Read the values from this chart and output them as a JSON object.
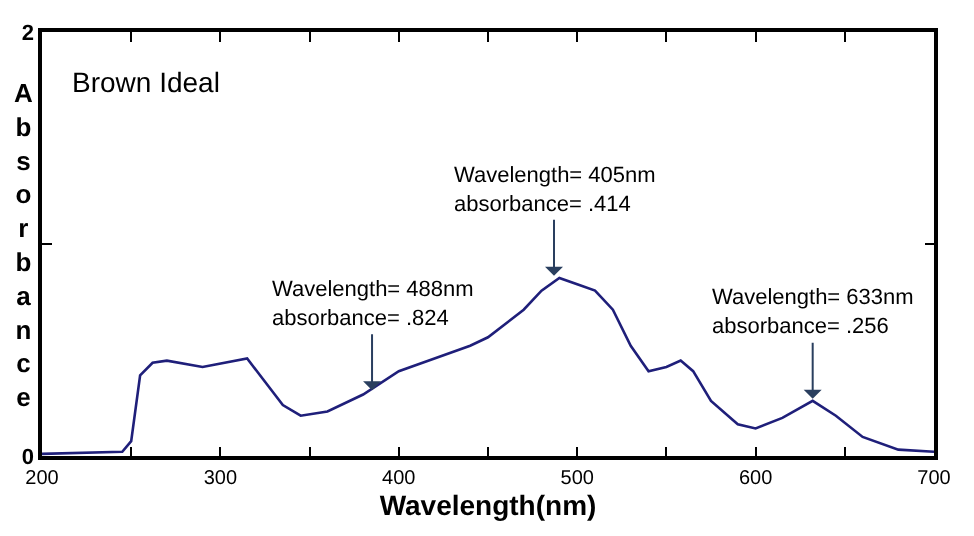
{
  "chart_data": {
    "type": "line",
    "title": "Brown Ideal",
    "xlabel": "Wavelength(nm)",
    "ylabel": "Absorbance",
    "x": [
      200,
      245,
      250,
      255,
      262,
      270,
      290,
      315,
      325,
      335,
      345,
      360,
      380,
      400,
      420,
      440,
      450,
      470,
      480,
      490,
      500,
      510,
      520,
      530,
      540,
      550,
      558,
      565,
      575,
      590,
      600,
      615,
      632,
      645,
      660,
      680,
      700
    ],
    "series": [
      {
        "color": "#1f1f7a",
        "values": [
          0.01,
          0.02,
          0.07,
          0.38,
          0.44,
          0.45,
          0.42,
          0.46,
          0.35,
          0.24,
          0.19,
          0.21,
          0.29,
          0.4,
          0.46,
          0.52,
          0.56,
          0.69,
          0.78,
          0.84,
          0.81,
          0.78,
          0.69,
          0.52,
          0.4,
          0.42,
          0.45,
          0.4,
          0.26,
          0.15,
          0.13,
          0.18,
          0.26,
          0.19,
          0.09,
          0.03,
          0.02
        ]
      }
    ],
    "xlim": [
      200,
      700
    ],
    "ylim": [
      0,
      2
    ],
    "xticks": [
      200,
      {
        "value": 250,
        "label": null
      },
      300,
      {
        "value": 350,
        "label": null
      },
      400,
      {
        "value": 450,
        "label": null
      },
      500,
      {
        "value": 550,
        "label": null
      },
      600,
      {
        "value": 650,
        "label": null
      },
      700
    ],
    "yticks": [
      0,
      {
        "value": 1,
        "label": null
      },
      2
    ],
    "marker": "none",
    "line_style": "solid",
    "annotations": [
      {
        "text": "Wavelength= 488nm\nabsorbance= .824",
        "x": 385,
        "y": 0.31
      },
      {
        "text": "Wavelength= 405nm\nabsorbance= .414",
        "x": 487,
        "y": 0.85
      },
      {
        "text": "Wavelength= 633nm\nabsorbance= .256",
        "x": 632,
        "y": 0.27
      }
    ]
  }
}
